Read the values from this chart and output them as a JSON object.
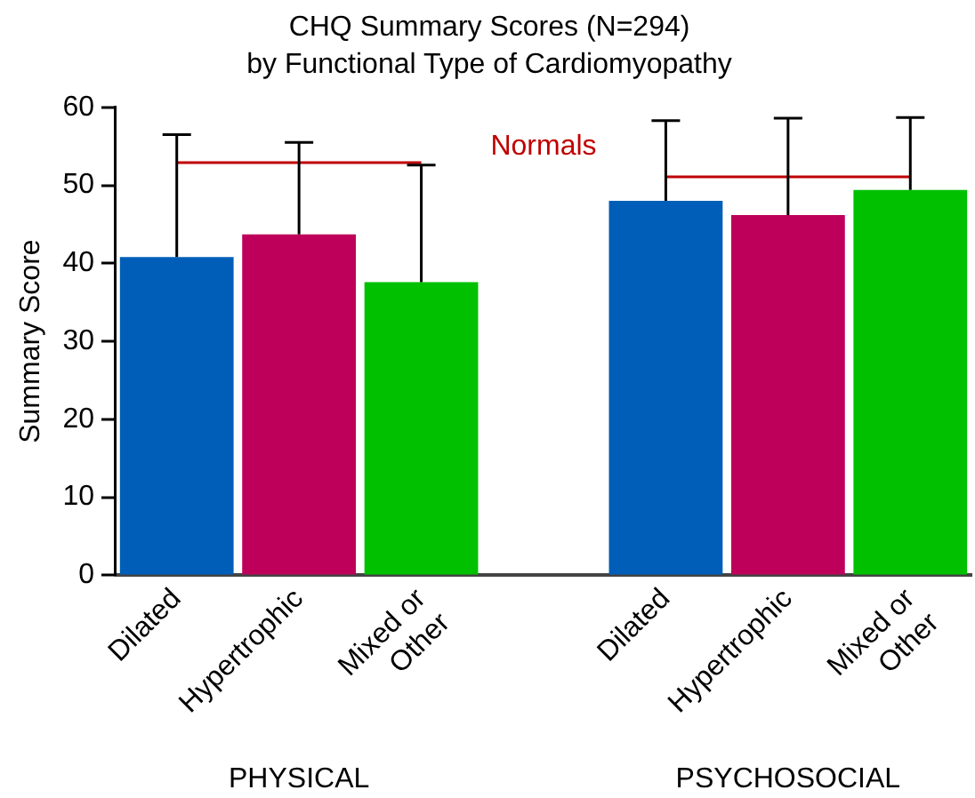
{
  "chart_data": {
    "type": "bar",
    "title": "CHQ Summary Scores (N=294)",
    "subtitle": "by Functional Type of Cardiomyopathy",
    "ylabel": "Summary Score",
    "categories": [
      "Dilated",
      "Hypertrophic",
      "Mixed or Other",
      null,
      "Dilated",
      "Hypertrophic",
      "Mixed or Other"
    ],
    "series": [
      {
        "values": [
          40.8,
          43.7,
          37.6,
          null,
          48.0,
          46.2,
          49.4
        ],
        "colors": [
          "#005eb8",
          "#bf005a",
          "#00c000",
          null,
          "#005eb8",
          "#bf005a",
          "#00c000"
        ],
        "errors": [
          [
            40.8,
            56.5
          ],
          [
            43.7,
            55.5
          ],
          [
            37.6,
            52.6
          ],
          null,
          [
            48.0,
            58.3
          ],
          [
            46.2,
            58.6
          ],
          [
            49.4,
            58.7
          ]
        ]
      },
      {
        "type": "line",
        "name": "Normals",
        "color": "#c00000",
        "values": [
          52.9,
          52.9,
          52.9,
          null,
          51.1,
          51.1,
          51.1
        ]
      }
    ],
    "annotations": [
      "PHYSICAL",
      "PSYCHOSOCIAL"
    ],
    "ylim": [
      0,
      60
    ],
    "yticks": [
      0,
      10,
      20,
      30,
      40,
      50,
      60
    ],
    "grid": false,
    "legend": false,
    "marker": "none",
    "line_style": "solid"
  }
}
